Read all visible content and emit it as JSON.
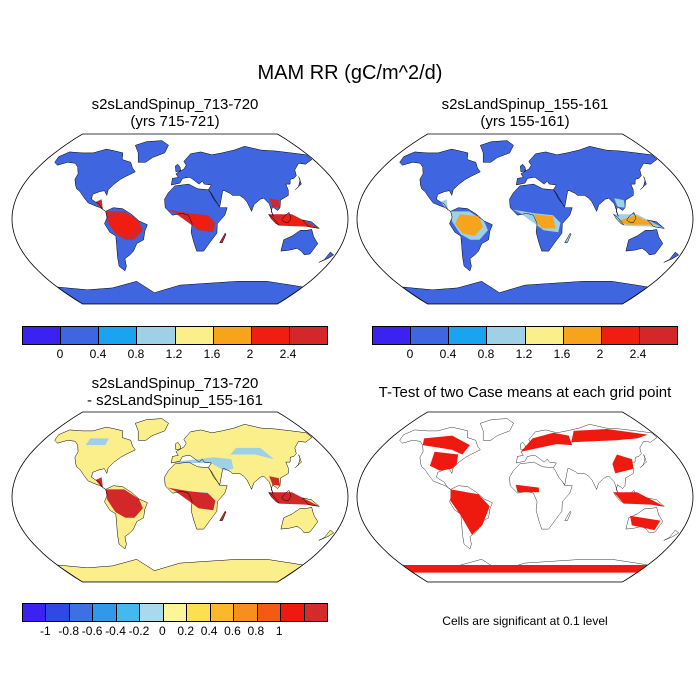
{
  "title": "MAM RR (gC/m^2/d)",
  "panels": [
    {
      "title_line1": "s2sLandSpinup_713-720",
      "title_line2": "(yrs 715-721)"
    },
    {
      "title_line1": "s2sLandSpinup_155-161",
      "title_line2": "(yrs 155-161)"
    },
    {
      "title_line1": "s2sLandSpinup_713-720",
      "title_line2": "- s2sLandSpinup_155-161"
    },
    {
      "title_line1": "T-Test of two Case means at each grid point",
      "title_line2": ""
    }
  ],
  "colorbar_top": {
    "colors": [
      "#3b22f0",
      "#3f66e0",
      "#1aa3ee",
      "#9ed0e6",
      "#fbef8c",
      "#f5a41c",
      "#f21d11",
      "#d3282a"
    ],
    "labels": [
      "0",
      "0.4",
      "0.8",
      "1.2",
      "1.6",
      "2",
      "2.4"
    ]
  },
  "colorbar_diff": {
    "colors": [
      "#3b22f0",
      "#2f49e6",
      "#3c70e3",
      "#3199e8",
      "#43b9ee",
      "#a9d9ec",
      "#fdf59a",
      "#fde04e",
      "#fbb82a",
      "#f88e1c",
      "#f45a12",
      "#ee1a10",
      "#d32a2a"
    ],
    "labels": [
      "-1",
      "-0.8",
      "-0.6",
      "-0.4",
      "-0.2",
      "0",
      "0.2",
      "0.4",
      "0.6",
      "0.8",
      "1"
    ]
  },
  "significance_note": "Cells are significant at 0.1 level",
  "map_colors": {
    "ocean": "#ffffff",
    "land_low": "#3f66e0",
    "land_mid": "#9ed0e6",
    "land_high": "#f21d11",
    "land_top": "#d3282a",
    "diff_bg": "#fbef8c",
    "sig": "#ee1a10"
  }
}
